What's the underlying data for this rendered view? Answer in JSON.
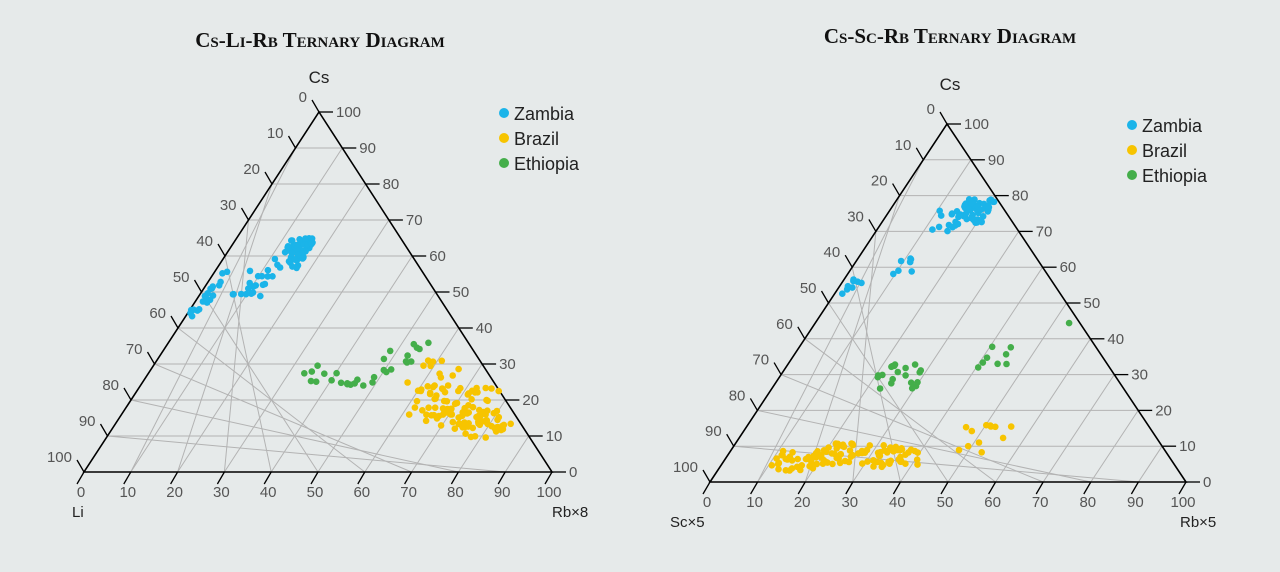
{
  "charts": [
    {
      "title": "Cs-Li-Rb Ternary Diagram",
      "corner_top": "Cs",
      "corner_left": "Li",
      "corner_right": "Rb×8",
      "ticks": [
        "0",
        "10",
        "20",
        "30",
        "40",
        "50",
        "60",
        "70",
        "80",
        "90",
        "100"
      ],
      "legend": [
        {
          "label": "Zambia",
          "color": "#1bb4e9"
        },
        {
          "label": "Brazil",
          "color": "#f7c400"
        },
        {
          "label": "Ethiopia",
          "color": "#44ae4a"
        }
      ]
    },
    {
      "title": "Cs-Sc-Rb Ternary Diagram",
      "corner_top": "Cs",
      "corner_left": "Sc×5",
      "corner_right": "Rb×5",
      "ticks": [
        "0",
        "10",
        "20",
        "30",
        "40",
        "50",
        "60",
        "70",
        "80",
        "90",
        "100"
      ],
      "legend": [
        {
          "label": "Zambia",
          "color": "#1bb4e9"
        },
        {
          "label": "Brazil",
          "color": "#f7c400"
        },
        {
          "label": "Ethiopia",
          "color": "#44ae4a"
        }
      ]
    }
  ],
  "chart_data": [
    {
      "type": "scatter",
      "subtype": "ternary",
      "title": "Cs-Li-Rb Ternary Diagram",
      "axes": {
        "top": "Cs",
        "left": "Li",
        "right": "Rb×8",
        "range": [
          0,
          100
        ],
        "step": 10
      },
      "grid": true,
      "legend_position": "top-right",
      "series": [
        {
          "name": "Zambia",
          "color": "#1bb4e9",
          "clusters": [
            {
              "cs": [
                61,
                65
              ],
              "rb": [
                12,
                17
              ],
              "n": 40
            },
            {
              "cs": [
                56,
                61
              ],
              "rb": [
                11,
                17
              ],
              "n": 22
            },
            {
              "cs": [
                48,
                56
              ],
              "rb": [
                7,
                14
              ],
              "n": 18
            },
            {
              "cs": [
                49,
                57
              ],
              "rb": [
                1,
                3
              ],
              "n": 6
            },
            {
              "cs": [
                45,
                52
              ],
              "rb": [
                0,
                3
              ],
              "n": 8
            },
            {
              "cs": [
                43,
                46
              ],
              "rb": [
                0,
                2
              ],
              "n": 6
            }
          ]
        },
        {
          "name": "Brazil",
          "color": "#f7c400",
          "clusters": [
            {
              "cs": [
                15,
                24
              ],
              "rb": [
                60,
                78
              ],
              "n": 55
            },
            {
              "cs": [
                12,
                18
              ],
              "rb": [
                65,
                82
              ],
              "n": 40
            },
            {
              "cs": [
                9,
                14
              ],
              "rb": [
                75,
                86
              ],
              "n": 18
            },
            {
              "cs": [
                24,
                33
              ],
              "rb": [
                55,
                66
              ],
              "n": 12
            }
          ]
        },
        {
          "name": "Ethiopia",
          "color": "#44ae4a",
          "clusters": [
            {
              "cs": [
                24,
                28
              ],
              "rb": [
                40,
                52
              ],
              "n": 12
            },
            {
              "cs": [
                28,
                36
              ],
              "rb": [
                45,
                56
              ],
              "n": 12
            },
            {
              "cs": [
                25,
                30
              ],
              "rb": [
                33,
                40
              ],
              "n": 6
            }
          ]
        }
      ]
    },
    {
      "type": "scatter",
      "subtype": "ternary",
      "title": "Cs-Sc-Rb Ternary Diagram",
      "axes": {
        "top": "Cs",
        "left": "Sc×5",
        "right": "Rb×5",
        "range": [
          0,
          100
        ],
        "step": 10
      },
      "grid": true,
      "legend_position": "top-right",
      "series": [
        {
          "name": "Zambia",
          "color": "#1bb4e9",
          "clusters": [
            {
              "cs": [
                72,
                79
              ],
              "rb": [
                15,
                21
              ],
              "n": 50
            },
            {
              "cs": [
                70,
                78
              ],
              "rb": [
                10,
                16
              ],
              "n": 12
            },
            {
              "cs": [
                58,
                65
              ],
              "rb": [
                9,
                14
              ],
              "n": 8
            },
            {
              "cs": [
                52,
                57
              ],
              "rb": [
                1,
                5
              ],
              "n": 8
            }
          ]
        },
        {
          "name": "Brazil",
          "color": "#f7c400",
          "clusters": [
            {
              "cs": [
                5,
                11
              ],
              "rb": [
                18,
                35
              ],
              "n": 60
            },
            {
              "cs": [
                3,
                9
              ],
              "rb": [
                10,
                20
              ],
              "n": 30
            },
            {
              "cs": [
                4,
                10
              ],
              "rb": [
                30,
                42
              ],
              "n": 25
            },
            {
              "cs": [
                8,
                16
              ],
              "rb": [
                46,
                56
              ],
              "n": 12
            }
          ]
        },
        {
          "name": "Ethiopia",
          "color": "#44ae4a",
          "clusters": [
            {
              "cs": [
                26,
                33
              ],
              "rb": [
                20,
                30
              ],
              "n": 20
            },
            {
              "cs": [
                32,
                38
              ],
              "rb": [
                40,
                46
              ],
              "n": 8
            },
            {
              "cs": [
                42,
                47
              ],
              "rb": [
                53,
                55
              ],
              "n": 2
            }
          ]
        }
      ]
    }
  ]
}
